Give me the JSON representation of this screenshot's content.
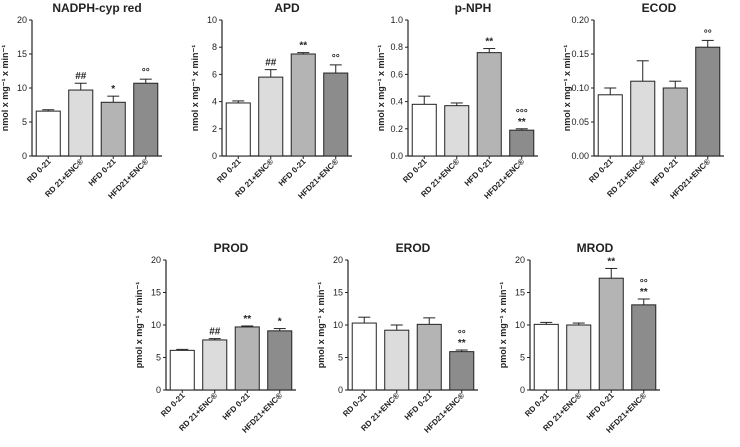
{
  "figure": {
    "fills": [
      "#ffffff",
      "#dcdcdc",
      "#b4b4b4",
      "#8c8c8c"
    ],
    "stroke_color": "#222222"
  },
  "chart_data": [
    {
      "type": "bar",
      "title": "NADPH-cyp red",
      "ylabel": "nmol x mg⁻¹ x min⁻¹",
      "ylim": [
        0,
        20
      ],
      "yticks": [
        "0",
        "5",
        "10",
        "15",
        "20"
      ],
      "categories": [
        "RD 0-21",
        "RD 21+ENC®",
        "HFD 0-21",
        "HFD21+ENC®"
      ],
      "values": [
        6.6,
        9.7,
        7.9,
        10.7
      ],
      "errors": [
        0.2,
        1.0,
        0.9,
        0.6
      ],
      "annotations": [
        "",
        "##",
        "*",
        "°°"
      ]
    },
    {
      "type": "bar",
      "title": "APD",
      "ylabel": "nmol x mg⁻¹ x min⁻¹",
      "ylim": [
        0,
        10
      ],
      "yticks": [
        "0",
        "2",
        "4",
        "6",
        "8",
        "10"
      ],
      "categories": [
        "RD 0-21",
        "RD 21+ENC®",
        "HFD 0-21",
        "HFD21+ENC®"
      ],
      "values": [
        3.9,
        5.8,
        7.5,
        6.1
      ],
      "errors": [
        0.15,
        0.55,
        0.1,
        0.6
      ],
      "annotations": [
        "",
        "##",
        "**",
        "°°"
      ]
    },
    {
      "type": "bar",
      "title": "p-NPH",
      "ylabel": "nmol x mg⁻¹ x min⁻¹",
      "ylim": [
        0,
        1.0
      ],
      "yticks": [
        "0.0",
        "0.2",
        "0.4",
        "0.6",
        "0.8",
        "1.0"
      ],
      "categories": [
        "RD 0-21",
        "RD 21+ENC®",
        "HFD 0-21",
        "HFD21+ENC®"
      ],
      "values": [
        0.38,
        0.37,
        0.76,
        0.19
      ],
      "errors": [
        0.06,
        0.02,
        0.03,
        0.01
      ],
      "annotations": [
        "",
        "",
        "**",
        "°°°\n**"
      ]
    },
    {
      "type": "bar",
      "title": "ECOD",
      "ylabel": "nmol x mg⁻¹ x min⁻¹",
      "ylim": [
        0,
        0.2
      ],
      "yticks": [
        "0.00",
        "0.05",
        "0.10",
        "0.15",
        "0.20"
      ],
      "categories": [
        "RD 0-21",
        "RD 21+ENC®",
        "HFD 0-21",
        "HFD21+ENC®"
      ],
      "values": [
        0.09,
        0.11,
        0.1,
        0.16
      ],
      "errors": [
        0.01,
        0.03,
        0.01,
        0.01
      ],
      "annotations": [
        "",
        "",
        "",
        "°°"
      ]
    },
    {
      "type": "bar",
      "title": "PROD",
      "ylabel": "pmol x mg⁻¹ x min⁻¹",
      "ylim": [
        0,
        20
      ],
      "yticks": [
        "0",
        "5",
        "10",
        "15",
        "20"
      ],
      "categories": [
        "RD 0-21",
        "RD 21+ENC®",
        "HFD 0-21",
        "HFD21+ENC®"
      ],
      "values": [
        6.1,
        7.7,
        9.7,
        9.1
      ],
      "errors": [
        0.15,
        0.2,
        0.15,
        0.35
      ],
      "annotations": [
        "",
        "##",
        "**",
        "*"
      ]
    },
    {
      "type": "bar",
      "title": "EROD",
      "ylabel": "pmol x mg⁻¹ x min⁻¹",
      "ylim": [
        0,
        20
      ],
      "yticks": [
        "0",
        "5",
        "10",
        "15",
        "20"
      ],
      "categories": [
        "RD 0-21",
        "RD 21+ENC®",
        "HFD 0-21",
        "HFD21+ENC®"
      ],
      "values": [
        10.3,
        9.2,
        10.1,
        5.9
      ],
      "errors": [
        0.9,
        0.8,
        1.0,
        0.25
      ],
      "annotations": [
        "",
        "",
        "",
        "°°\n**"
      ]
    },
    {
      "type": "bar",
      "title": "MROD",
      "ylabel": "pmol x mg⁻¹ x min⁻¹",
      "ylim": [
        0,
        20
      ],
      "yticks": [
        "0",
        "5",
        "10",
        "15",
        "20"
      ],
      "categories": [
        "RD 0-21",
        "RD 21+ENC®",
        "HFD 0-21",
        "HFD21+ENC®"
      ],
      "values": [
        10.1,
        10.0,
        17.2,
        13.1
      ],
      "errors": [
        0.3,
        0.3,
        1.5,
        0.9
      ],
      "annotations": [
        "",
        "",
        "**",
        "°°\n**"
      ]
    }
  ]
}
